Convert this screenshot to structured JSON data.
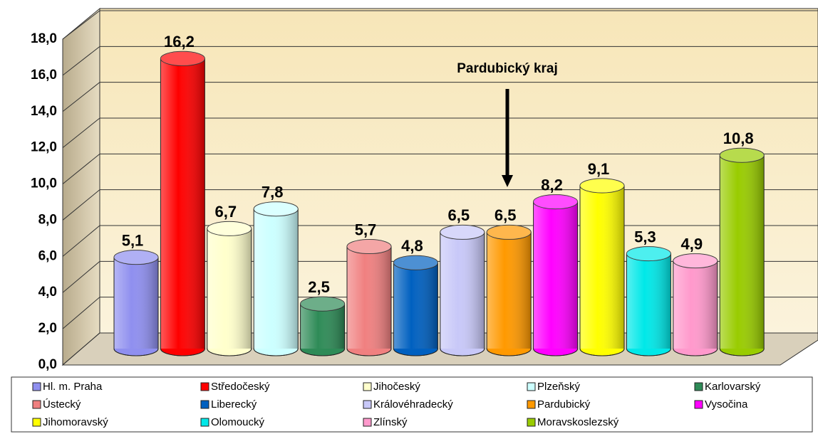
{
  "chart_data": {
    "type": "bar",
    "categories": [
      "Hl. m. Praha",
      "Středočeský",
      "Jihočeský",
      "Plzeňský",
      "Karlovarský",
      "Ústecký",
      "Liberecký",
      "Královéhradecký",
      "Pardubický",
      "Vysočina",
      "Jihomoravský",
      "Olomoucký",
      "Zlínský",
      "Moravskoslezský"
    ],
    "values": [
      5.1,
      16.2,
      6.7,
      7.8,
      2.5,
      5.7,
      4.8,
      6.5,
      6.5,
      8.2,
      9.1,
      5.3,
      4.9,
      10.8
    ],
    "value_labels": [
      "5,1",
      "16,2",
      "6,7",
      "7,8",
      "2,5",
      "5,7",
      "4,8",
      "6,5",
      "6,5",
      "8,2",
      "9,1",
      "5,3",
      "4,9",
      "10,8"
    ],
    "colors": [
      "#8f8fef",
      "#ff0000",
      "#ffffcc",
      "#ccffff",
      "#2e8b57",
      "#f08080",
      "#0060c0",
      "#c8c8f8",
      "#ff9900",
      "#ff00ff",
      "#ffff00",
      "#00e8e8",
      "#ff99cc",
      "#99cc00"
    ],
    "ylim": [
      0,
      18
    ],
    "yticks": [
      {
        "value": 0,
        "label": "0,0"
      },
      {
        "value": 2,
        "label": "2,0"
      },
      {
        "value": 4,
        "label": "4,0"
      },
      {
        "value": 6,
        "label": "6,0"
      },
      {
        "value": 8,
        "label": "8,0"
      },
      {
        "value": 10,
        "label": "10,0"
      },
      {
        "value": 12,
        "label": "12,0"
      },
      {
        "value": 14,
        "label": "14,0"
      },
      {
        "value": 16,
        "label": "16,0"
      },
      {
        "value": 18,
        "label": "18,0"
      }
    ],
    "grid": true,
    "annotation": "Pardubický kraj",
    "legend": "bottom"
  }
}
